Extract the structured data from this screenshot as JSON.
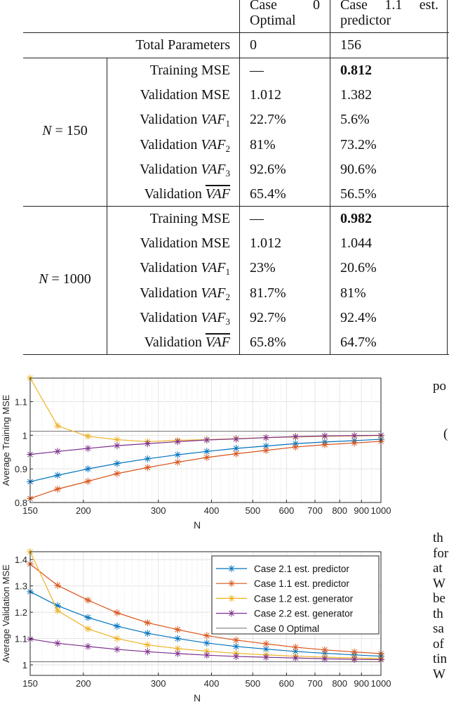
{
  "table": {
    "headers": [
      {
        "line1": "Case 0",
        "line2": "Optimal"
      },
      {
        "line1": "Case 1.1 est.",
        "line2": "predictor"
      }
    ],
    "total_params": {
      "label": "Total Parameters",
      "values": [
        "0",
        "156"
      ]
    },
    "groups": [
      {
        "label_var": "N",
        "label_eq": " = 150",
        "rows": [
          {
            "prefix": "Training MSE",
            "math": "",
            "sub": "",
            "bar": false,
            "values": [
              "—",
              "0.812"
            ],
            "bold": [
              false,
              true
            ]
          },
          {
            "prefix": "Validation MSE",
            "math": "",
            "sub": "",
            "bar": false,
            "values": [
              "1.012",
              "1.382"
            ],
            "bold": [
              false,
              false
            ]
          },
          {
            "prefix": "Validation ",
            "math": "VAF",
            "sub": "1",
            "bar": false,
            "values": [
              "22.7%",
              "5.6%"
            ],
            "bold": [
              false,
              false
            ]
          },
          {
            "prefix": "Validation ",
            "math": "VAF",
            "sub": "2",
            "bar": false,
            "values": [
              "81%",
              "73.2%"
            ],
            "bold": [
              false,
              false
            ]
          },
          {
            "prefix": "Validation ",
            "math": "VAF",
            "sub": "3",
            "bar": false,
            "values": [
              "92.6%",
              "90.6%"
            ],
            "bold": [
              false,
              false
            ]
          },
          {
            "prefix": "Validation ",
            "math": "VAF",
            "sub": "",
            "bar": true,
            "values": [
              "65.4%",
              "56.5%"
            ],
            "bold": [
              false,
              false
            ]
          }
        ]
      },
      {
        "label_var": "N",
        "label_eq": " = 1000",
        "rows": [
          {
            "prefix": "Training MSE",
            "math": "",
            "sub": "",
            "bar": false,
            "values": [
              "—",
              "0.982"
            ],
            "bold": [
              false,
              true
            ]
          },
          {
            "prefix": "Validation MSE",
            "math": "",
            "sub": "",
            "bar": false,
            "values": [
              "1.012",
              "1.044"
            ],
            "bold": [
              false,
              false
            ]
          },
          {
            "prefix": "Validation ",
            "math": "VAF",
            "sub": "1",
            "bar": false,
            "values": [
              "23%",
              "20.6%"
            ],
            "bold": [
              false,
              false
            ]
          },
          {
            "prefix": "Validation ",
            "math": "VAF",
            "sub": "2",
            "bar": false,
            "values": [
              "81.7%",
              "81%"
            ],
            "bold": [
              false,
              false
            ]
          },
          {
            "prefix": "Validation ",
            "math": "VAF",
            "sub": "3",
            "bar": false,
            "values": [
              "92.7%",
              "92.4%"
            ],
            "bold": [
              false,
              false
            ]
          },
          {
            "prefix": "Validation ",
            "math": "VAF",
            "sub": "",
            "bar": true,
            "values": [
              "65.8%",
              "64.7%"
            ],
            "bold": [
              false,
              false
            ]
          }
        ]
      }
    ]
  },
  "side_text": [
    "po",
    "(",
    "th",
    "for",
    "at",
    "W",
    "be",
    "th",
    "sa",
    "of",
    "tin",
    "W"
  ],
  "chart_data": [
    {
      "type": "line",
      "title": "",
      "xlabel": "N",
      "ylabel": "Average Training MSE",
      "xscale": "log",
      "xlim": [
        150,
        1000
      ],
      "ylim": [
        0.8,
        1.17
      ],
      "xticks": [
        150,
        200,
        300,
        400,
        500,
        600,
        700,
        800,
        900,
        1000
      ],
      "xtick_labels": [
        "150",
        "200",
        "300",
        "400",
        "500",
        "600",
        "700",
        "800",
        "900",
        "1000"
      ],
      "yticks": [
        0.8,
        0.9,
        1.0,
        1.1
      ],
      "ytick_labels": [
        "0.8",
        "0.9",
        "1",
        "1.1"
      ],
      "grid": true,
      "x": [
        150,
        174,
        205,
        240,
        283,
        333,
        390,
        457,
        537,
        630,
        738,
        866,
        1000
      ],
      "series": [
        {
          "name": "Case 2.1 est. predictor",
          "color": "#0072BD",
          "values": [
            0.862,
            0.881,
            0.9,
            0.916,
            0.93,
            0.942,
            0.952,
            0.961,
            0.968,
            0.975,
            0.98,
            0.984,
            0.988
          ]
        },
        {
          "name": "Case 1.1 est. predictor",
          "color": "#D95319",
          "values": [
            0.812,
            0.84,
            0.863,
            0.886,
            0.904,
            0.92,
            0.934,
            0.945,
            0.955,
            0.965,
            0.972,
            0.977,
            0.982
          ]
        },
        {
          "name": "Case 1.2 est. generator",
          "color": "#EDB120",
          "values": [
            1.17,
            1.028,
            0.997,
            0.987,
            0.981,
            0.985,
            0.987,
            0.99,
            0.993,
            0.995,
            0.997,
            0.998,
            0.999
          ]
        },
        {
          "name": "Case 2.2 est. generator",
          "color": "#7E2F8E",
          "values": [
            0.943,
            0.952,
            0.961,
            0.969,
            0.975,
            0.981,
            0.986,
            0.989,
            0.993,
            0.996,
            0.998,
            0.999,
            1.0
          ]
        }
      ],
      "reference": {
        "name": "Case 0 Optimal",
        "color": "#7f7f7f",
        "value": 1.012
      },
      "legend": null
    },
    {
      "type": "line",
      "title": "",
      "xlabel": "N",
      "ylabel": "Average Validation MSE",
      "xscale": "log",
      "xlim": [
        150,
        1000
      ],
      "ylim": [
        0.96,
        1.43
      ],
      "xticks": [
        150,
        200,
        300,
        400,
        500,
        600,
        700,
        800,
        900,
        1000
      ],
      "xtick_labels": [
        "150",
        "200",
        "300",
        "400",
        "500",
        "600",
        "700",
        "800",
        "900",
        "1000"
      ],
      "yticks": [
        1.0,
        1.1,
        1.2,
        1.3,
        1.4
      ],
      "ytick_labels": [
        "1",
        "1.1",
        "1.2",
        "1.3",
        "1.4"
      ],
      "grid": true,
      "x": [
        150,
        174,
        205,
        240,
        283,
        333,
        390,
        457,
        537,
        630,
        738,
        866,
        1000
      ],
      "series": [
        {
          "name": "Case 2.1 est. predictor",
          "color": "#0072BD",
          "values": [
            1.278,
            1.225,
            1.18,
            1.147,
            1.12,
            1.1,
            1.083,
            1.07,
            1.06,
            1.051,
            1.044,
            1.038,
            1.033
          ]
        },
        {
          "name": "Case 1.1 est. predictor",
          "color": "#D95319",
          "values": [
            1.383,
            1.302,
            1.246,
            1.198,
            1.16,
            1.134,
            1.111,
            1.094,
            1.08,
            1.067,
            1.057,
            1.049,
            1.043
          ]
        },
        {
          "name": "Case 1.2 est. generator",
          "color": "#EDB120",
          "values": [
            1.43,
            1.206,
            1.137,
            1.1,
            1.076,
            1.062,
            1.052,
            1.044,
            1.038,
            1.033,
            1.029,
            1.026,
            1.024
          ]
        },
        {
          "name": "Case 2.2 est. generator",
          "color": "#7E2F8E",
          "values": [
            1.098,
            1.082,
            1.07,
            1.059,
            1.05,
            1.043,
            1.037,
            1.032,
            1.029,
            1.026,
            1.023,
            1.021,
            1.02
          ]
        }
      ],
      "reference": {
        "name": "Case 0 Optimal",
        "color": "#7f7f7f",
        "value": 1.012
      },
      "legend": "top-right"
    }
  ]
}
